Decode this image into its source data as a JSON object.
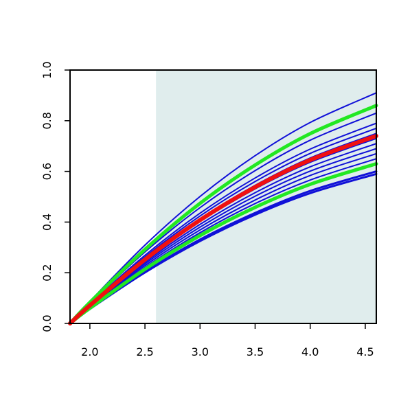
{
  "chart_data": {
    "type": "line",
    "x": [
      1.82,
      2.0,
      2.5,
      3.0,
      3.5,
      4.0,
      4.6
    ],
    "xlim": [
      1.82,
      4.6
    ],
    "ylim": [
      0,
      1
    ],
    "xticks": [
      {
        "value": 2.0,
        "label": "2.0"
      },
      2.5,
      {
        "value": 3.0,
        "label": "3.0"
      },
      3.5,
      {
        "value": 4.0,
        "label": "4.0"
      },
      4.5
    ],
    "yticks": [
      {
        "value": 0,
        "label": "0.0"
      },
      {
        "value": 0.2,
        "label": "0.2"
      },
      {
        "value": 0.4,
        "label": "0.4"
      },
      {
        "value": 0.6,
        "label": "0.6"
      },
      {
        "value": 0.8,
        "label": "0.8"
      },
      {
        "value": 1.0,
        "label": "1.0"
      }
    ],
    "shaded_region": {
      "x": [
        2.6,
        4.6
      ],
      "color": "#e0eded"
    },
    "series": [
      {
        "color": "#1010d8",
        "line_width": 2,
        "values": [
          0,
          0.087,
          0.309,
          0.501,
          0.662,
          0.793,
          0.91
        ]
      },
      {
        "color": "#1010d8",
        "line_width": 2,
        "values": [
          0,
          0.08,
          0.282,
          0.457,
          0.603,
          0.723,
          0.83
        ]
      },
      {
        "color": "#1010d8",
        "line_width": 2,
        "values": [
          0,
          0.076,
          0.269,
          0.435,
          0.574,
          0.688,
          0.79
        ]
      },
      {
        "color": "#1010d8",
        "line_width": 2,
        "values": [
          0,
          0.074,
          0.262,
          0.424,
          0.56,
          0.671,
          0.77
        ]
      },
      {
        "color": "#1010d8",
        "line_width": 2,
        "values": [
          0,
          0.072,
          0.255,
          0.413,
          0.545,
          0.653,
          0.75
        ]
      },
      {
        "color": "#1010d8",
        "line_width": 2,
        "values": [
          0,
          0.07,
          0.248,
          0.402,
          0.531,
          0.636,
          0.73
        ]
      },
      {
        "color": "#1010d8",
        "line_width": 2,
        "values": [
          0,
          0.068,
          0.241,
          0.391,
          0.516,
          0.618,
          0.71
        ]
      },
      {
        "color": "#1010d8",
        "line_width": 2,
        "values": [
          0,
          0.066,
          0.235,
          0.38,
          0.502,
          0.601,
          0.69
        ]
      },
      {
        "color": "#1010d8",
        "line_width": 2,
        "values": [
          0,
          0.064,
          0.228,
          0.369,
          0.487,
          0.584,
          0.67
        ]
      },
      {
        "color": "#1010d8",
        "line_width": 2,
        "values": [
          0,
          0.062,
          0.221,
          0.358,
          0.473,
          0.566,
          0.65
        ]
      },
      {
        "color": "#1010d8",
        "line_width": 3,
        "values": [
          0,
          0.058,
          0.204,
          0.331,
          0.436,
          0.523,
          0.6
        ]
      },
      {
        "color": "#1010d8",
        "line_width": 3,
        "values": [
          0,
          0.057,
          0.201,
          0.325,
          0.429,
          0.514,
          0.59
        ]
      },
      {
        "color": "#22e822",
        "line_width": 5,
        "values": [
          0,
          0.083,
          0.292,
          0.474,
          0.625,
          0.749,
          0.86
        ]
      },
      {
        "color": "#22e822",
        "line_width": 5,
        "values": [
          0,
          0.06,
          0.214,
          0.347,
          0.458,
          0.549,
          0.63
        ]
      },
      {
        "color": "#f01010",
        "line_width": 6,
        "values": [
          0,
          0.071,
          0.252,
          0.408,
          0.538,
          0.645,
          0.74
        ]
      }
    ]
  }
}
